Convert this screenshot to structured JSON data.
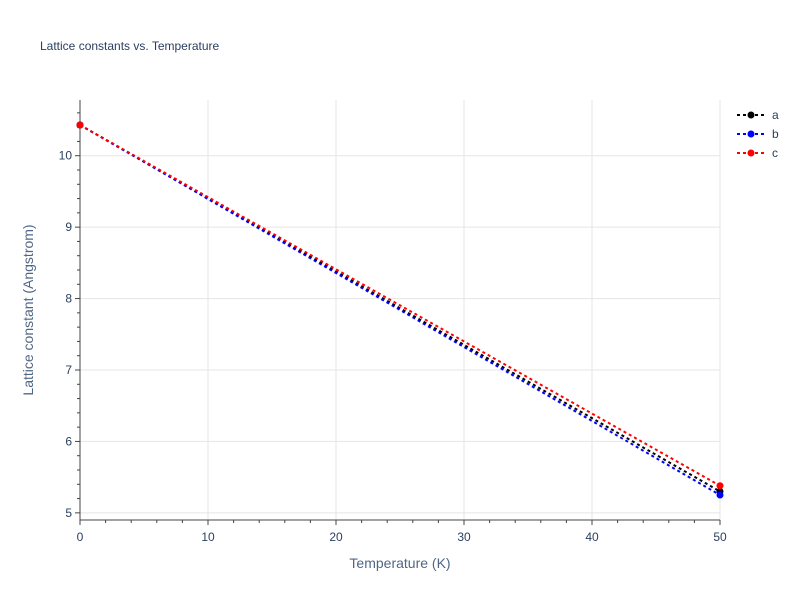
{
  "chart_data": {
    "type": "line",
    "title": "Lattice constants vs. Temperature",
    "xlabel": "Temperature (K)",
    "ylabel": "Lattice constant (Angstrom)",
    "xlim": [
      0,
      50
    ],
    "ylim": [
      4.9,
      10.78
    ],
    "xticks": [
      0,
      10,
      20,
      30,
      40,
      50
    ],
    "yticks": [
      5,
      6,
      7,
      8,
      9,
      10
    ],
    "grid": true,
    "legend_position": "top-right",
    "series": [
      {
        "name": "a",
        "color": "#000000",
        "x": [
          0,
          50
        ],
        "y": [
          10.43,
          5.3
        ]
      },
      {
        "name": "b",
        "color": "#0000ff",
        "x": [
          0,
          50
        ],
        "y": [
          10.43,
          5.25
        ]
      },
      {
        "name": "c",
        "color": "#ff0000",
        "x": [
          0,
          50
        ],
        "y": [
          10.43,
          5.38
        ]
      }
    ]
  }
}
